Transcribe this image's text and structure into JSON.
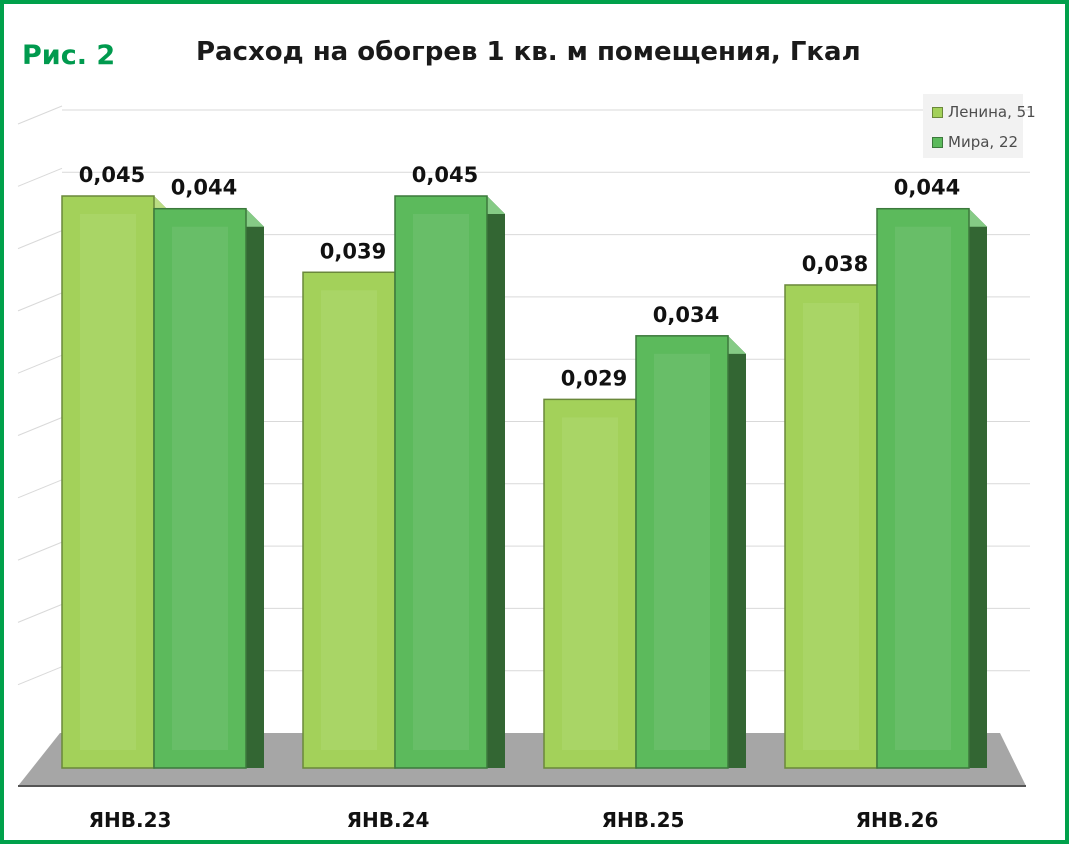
{
  "figure_label": "Рис. 2",
  "chart_data": {
    "type": "bar",
    "title": "Расход на обогрев 1 кв. м помещения, Гкал",
    "categories": [
      "ЯНВ.23",
      "ЯНВ.24",
      "ЯНВ.25",
      "ЯНВ.26"
    ],
    "series": [
      {
        "name": "Ленина, 51",
        "values": [
          0.045,
          0.039,
          0.029,
          0.038
        ],
        "labels": [
          "0,045",
          "0,039",
          "0,029",
          "0,038"
        ],
        "color": "#a3d15a"
      },
      {
        "name": "Мира, 22",
        "values": [
          0.044,
          0.045,
          0.034,
          0.044
        ],
        "labels": [
          "0,044",
          "0,045",
          "0,034",
          "0,044"
        ],
        "color": "#5cba5c"
      }
    ],
    "ylim": [
      0,
      0.045
    ],
    "grid": true,
    "legend": "top-right",
    "xlabel": "",
    "ylabel": ""
  },
  "colors": {
    "frame": "#00a14b",
    "figure_label": "#009a4e",
    "floor": "#a6a6a6",
    "gridline": "#d9d9d9"
  }
}
